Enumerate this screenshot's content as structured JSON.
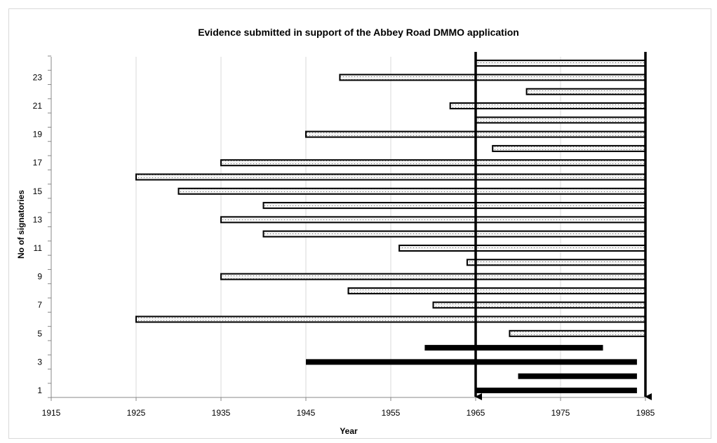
{
  "chart_data": {
    "type": "bar",
    "orientation": "horizontal",
    "title": "Evidence submitted in support of the Abbey Road DMMO application",
    "xlabel": "Year",
    "ylabel": "No of signatories",
    "xlim": [
      1915,
      1985
    ],
    "x_ticks": [
      "1915",
      "1925",
      "1935",
      "1945",
      "1955",
      "1965",
      "1975",
      "1985"
    ],
    "ylim": [
      0,
      24
    ],
    "y_ticks": [
      "1",
      "3",
      "5",
      "7",
      "9",
      "11",
      "13",
      "15",
      "17",
      "19",
      "21",
      "23"
    ],
    "grid": "vertical",
    "legend": "none",
    "colors": {
      "solid": "#000000",
      "dotted_fill": "#f2f2f2",
      "dot": "#6f6f6f",
      "outline": "#000000",
      "grid": "#d9d9d9"
    },
    "reference_lines": [
      {
        "x": 1965,
        "style": "arrow-down"
      },
      {
        "x": 1985,
        "style": "arrow-down"
      }
    ],
    "bars": [
      {
        "row": 1,
        "start": 1965,
        "end": 1984,
        "style": "solid"
      },
      {
        "row": 2,
        "start": 1970,
        "end": 1984,
        "style": "solid"
      },
      {
        "row": 3,
        "start": 1945,
        "end": 1984,
        "style": "solid"
      },
      {
        "row": 4,
        "start": 1959,
        "end": 1980,
        "style": "solid"
      },
      {
        "row": 5,
        "start": 1969,
        "end": 1985,
        "style": "dotted"
      },
      {
        "row": 6,
        "start": 1925,
        "end": 1985,
        "style": "dotted"
      },
      {
        "row": 7,
        "start": 1960,
        "end": 1985,
        "style": "dotted"
      },
      {
        "row": 8,
        "start": 1950,
        "end": 1985,
        "style": "dotted"
      },
      {
        "row": 9,
        "start": 1935,
        "end": 1985,
        "style": "dotted"
      },
      {
        "row": 10,
        "start": 1964,
        "end": 1985,
        "style": "dotted"
      },
      {
        "row": 11,
        "start": 1956,
        "end": 1985,
        "style": "dotted"
      },
      {
        "row": 12,
        "start": 1940,
        "end": 1985,
        "style": "dotted"
      },
      {
        "row": 13,
        "start": 1935,
        "end": 1985,
        "style": "dotted"
      },
      {
        "row": 14,
        "start": 1940,
        "end": 1985,
        "style": "dotted"
      },
      {
        "row": 15,
        "start": 1930,
        "end": 1985,
        "style": "dotted"
      },
      {
        "row": 16,
        "start": 1925,
        "end": 1985,
        "style": "dotted"
      },
      {
        "row": 17,
        "start": 1935,
        "end": 1985,
        "style": "dotted"
      },
      {
        "row": 18,
        "start": 1967,
        "end": 1985,
        "style": "dotted"
      },
      {
        "row": 19,
        "start": 1945,
        "end": 1985,
        "style": "dotted"
      },
      {
        "row": 20,
        "start": 1965,
        "end": 1985,
        "style": "dotted"
      },
      {
        "row": 21,
        "start": 1962,
        "end": 1985,
        "style": "dotted"
      },
      {
        "row": 22,
        "start": 1971,
        "end": 1985,
        "style": "dotted"
      },
      {
        "row": 23,
        "start": 1949,
        "end": 1985,
        "style": "dotted"
      },
      {
        "row": 24,
        "start": 1965,
        "end": 1985,
        "style": "dotted"
      }
    ]
  }
}
